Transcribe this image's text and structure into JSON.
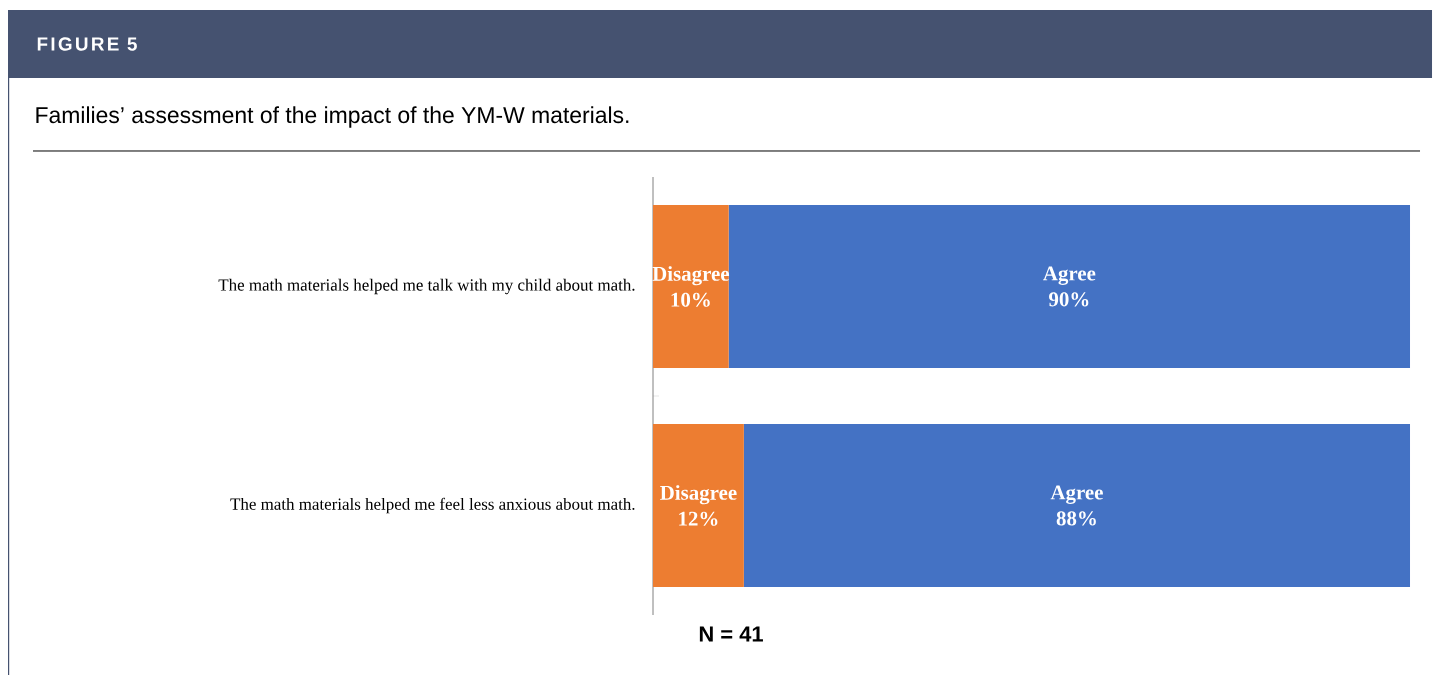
{
  "chart_data": {
    "type": "bar",
    "orientation": "horizontal",
    "stacked": true,
    "title": "FIGURE 5",
    "subtitle": "Families’ assessment of the impact of the YM-W materials.",
    "categories": [
      "The math materials helped me talk with my child about math.",
      "The math materials helped me feel less anxious about math."
    ],
    "series": [
      {
        "name": "Disagree",
        "color": "#ed7d31",
        "values": [
          10,
          12
        ],
        "value_labels": [
          "10%",
          "12%"
        ]
      },
      {
        "name": "Agree",
        "color": "#4472c4",
        "values": [
          90,
          88
        ],
        "value_labels": [
          "90%",
          "88%"
        ]
      }
    ],
    "annotations": [
      "N = 41"
    ]
  }
}
